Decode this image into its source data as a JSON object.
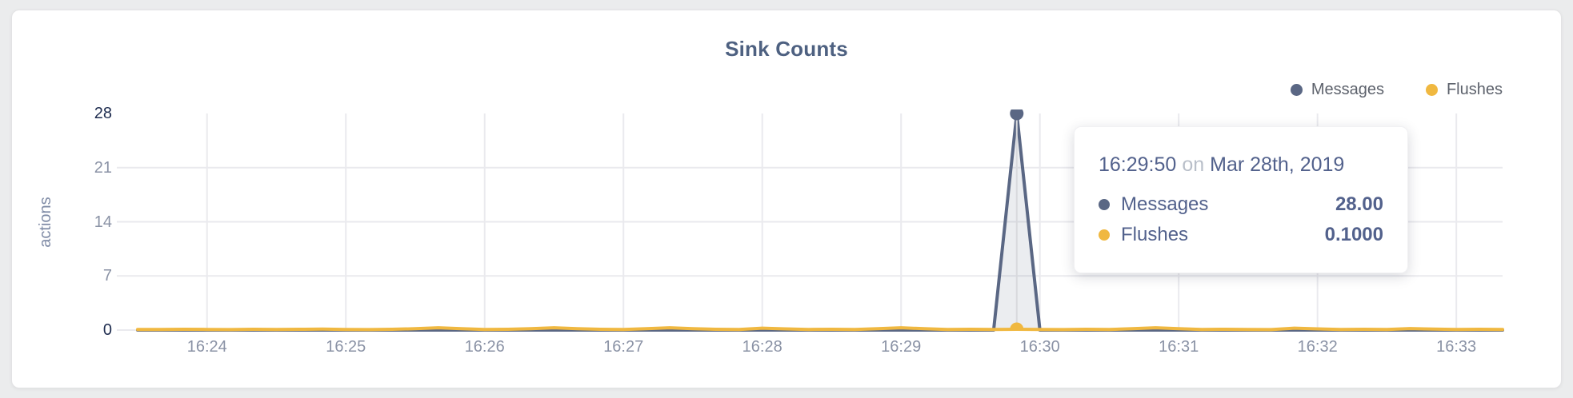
{
  "card": {
    "title": "Sink Counts"
  },
  "legend": {
    "position": "top-right",
    "items": [
      {
        "label": "Messages",
        "color": "#5a6784"
      },
      {
        "label": "Flushes",
        "color": "#f0b840"
      }
    ]
  },
  "y_axis": {
    "label": "actions",
    "ticks": [
      0,
      7,
      14,
      21,
      28
    ],
    "emphasized_ticks": [
      0,
      28
    ]
  },
  "x_axis": {
    "ticks": [
      "16:24",
      "16:25",
      "16:26",
      "16:27",
      "16:28",
      "16:29",
      "16:30",
      "16:31",
      "16:32",
      "16:33"
    ]
  },
  "tooltip": {
    "time": "16:29:50",
    "connector": "on",
    "date": "Mar 28th, 2019",
    "rows": [
      {
        "label": "Messages",
        "value": "28.00",
        "color": "#5a6784"
      },
      {
        "label": "Flushes",
        "value": "0.1000",
        "color": "#f0b840"
      }
    ]
  },
  "chart_data": {
    "type": "line",
    "title": "Sink Counts",
    "xlabel": "",
    "ylabel": "actions",
    "ylim": [
      0,
      28
    ],
    "y_ticks": [
      0,
      7,
      14,
      21,
      28
    ],
    "x_ticks": [
      "16:24",
      "16:25",
      "16:26",
      "16:27",
      "16:28",
      "16:29",
      "16:30",
      "16:31",
      "16:32",
      "16:33"
    ],
    "x_start": "16:23:30",
    "x_end": "16:33:20",
    "interval_seconds": 10,
    "grid": true,
    "legend_position": "top-right",
    "hover": {
      "time": "16:29:50",
      "values": {
        "Messages": 28.0,
        "Flushes": 0.1
      }
    },
    "colors": {
      "grid": "#eaeaee",
      "crosshair": "#d8d9dd",
      "messages_fill": "rgba(90,103,132,0.12)"
    },
    "series": [
      {
        "name": "Messages",
        "color": "#5a6784",
        "values": [
          0,
          0,
          0,
          0,
          0,
          0,
          0,
          0,
          0,
          0,
          0,
          0,
          0,
          0,
          0,
          0,
          0,
          0,
          0,
          0,
          0,
          0,
          0,
          0,
          0,
          0,
          0,
          0,
          0,
          0,
          0,
          0,
          0,
          0,
          0,
          0,
          0,
          0,
          28,
          0,
          0,
          0,
          0,
          0,
          0,
          0,
          0,
          0,
          0,
          0,
          0,
          0,
          0,
          0,
          0,
          0,
          0,
          0,
          0,
          0
        ]
      },
      {
        "name": "Flushes",
        "color": "#f0b840",
        "values": [
          0.08,
          0.08,
          0.1,
          0.08,
          0.06,
          0.1,
          0.08,
          0.1,
          0.12,
          0.08,
          0.06,
          0.1,
          0.18,
          0.3,
          0.18,
          0.08,
          0.1,
          0.18,
          0.3,
          0.18,
          0.1,
          0.08,
          0.18,
          0.3,
          0.18,
          0.1,
          0.08,
          0.25,
          0.15,
          0.08,
          0.1,
          0.08,
          0.18,
          0.3,
          0.18,
          0.08,
          0.1,
          0.08,
          0.1,
          0.08,
          0.06,
          0.1,
          0.08,
          0.18,
          0.3,
          0.18,
          0.08,
          0.1,
          0.08,
          0.06,
          0.25,
          0.15,
          0.08,
          0.1,
          0.08,
          0.2,
          0.12,
          0.08,
          0.1,
          0.08
        ]
      }
    ]
  }
}
